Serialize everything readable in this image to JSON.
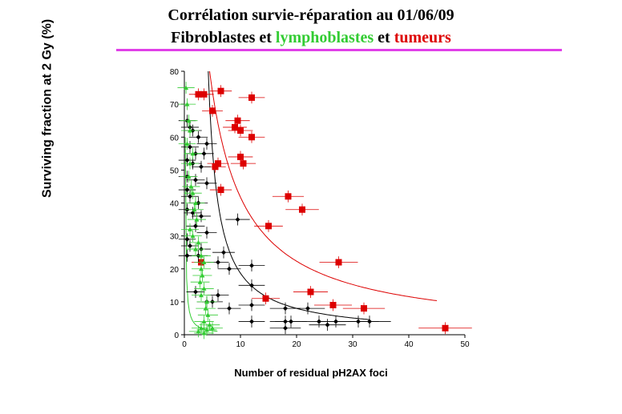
{
  "title_line1": "Corrélation survie-réparation au 01/06/09",
  "title_line2": {
    "part1": "Fibroblastes et ",
    "part2": "lymphoblastes",
    "part3": " et ",
    "part4": "tumeurs"
  },
  "colors": {
    "fibro": "#000000",
    "lympho": "#33cc33",
    "tumeur": "#dd0000",
    "rule": "#e040e8"
  },
  "chart_data": {
    "type": "scatter",
    "xlabel": "Number of residual pH2AX foci",
    "ylabel": "Surviving fraction at 2 Gy (%)",
    "xlim": [
      0,
      50
    ],
    "ylim": [
      0,
      80
    ],
    "xticks": [
      0,
      10,
      20,
      30,
      40,
      50
    ],
    "yticks": [
      0,
      10,
      20,
      30,
      40,
      50,
      60,
      70,
      80
    ],
    "series": [
      {
        "marker": "square",
        "color": "#dd0000",
        "points": [
          [
            2.5,
            73
          ],
          [
            3.5,
            73
          ],
          [
            6.5,
            74
          ],
          [
            12,
            72
          ],
          [
            5,
            68
          ],
          [
            9.5,
            65
          ],
          [
            9,
            63
          ],
          [
            10,
            62
          ],
          [
            12,
            60
          ],
          [
            6,
            52
          ],
          [
            5.5,
            51
          ],
          [
            10,
            54
          ],
          [
            10.5,
            52
          ],
          [
            6.5,
            44
          ],
          [
            18.5,
            42
          ],
          [
            21,
            38
          ],
          [
            15,
            33
          ],
          [
            27.5,
            22
          ],
          [
            3,
            22
          ],
          [
            22.5,
            13
          ],
          [
            14.5,
            11
          ],
          [
            26.5,
            9
          ],
          [
            32,
            8
          ],
          [
            46.5,
            2
          ]
        ]
      },
      {
        "marker": "diamond",
        "color": "#000000",
        "points": [
          [
            0.5,
            65
          ],
          [
            1,
            63
          ],
          [
            1.5,
            62
          ],
          [
            2.5,
            60
          ],
          [
            4,
            58
          ],
          [
            1,
            57
          ],
          [
            2,
            55
          ],
          [
            3.5,
            55
          ],
          [
            0.5,
            53
          ],
          [
            1.5,
            52
          ],
          [
            3,
            51
          ],
          [
            0.5,
            48
          ],
          [
            2,
            47
          ],
          [
            4,
            46
          ],
          [
            0.5,
            44
          ],
          [
            1,
            42
          ],
          [
            2.5,
            40
          ],
          [
            0.5,
            38
          ],
          [
            1.5,
            37
          ],
          [
            3,
            36
          ],
          [
            9.5,
            35
          ],
          [
            2,
            33
          ],
          [
            4,
            31
          ],
          [
            0.5,
            29
          ],
          [
            1,
            27
          ],
          [
            3,
            26
          ],
          [
            7,
            25
          ],
          [
            0.5,
            24
          ],
          [
            2.5,
            24
          ],
          [
            6,
            22
          ],
          [
            12,
            21
          ],
          [
            8,
            20
          ],
          [
            12,
            15
          ],
          [
            2,
            13
          ],
          [
            6,
            12
          ],
          [
            4,
            10
          ],
          [
            5,
            10
          ],
          [
            12,
            9
          ],
          [
            8,
            8
          ],
          [
            18,
            8
          ],
          [
            22,
            8
          ],
          [
            12,
            4
          ],
          [
            18,
            4
          ],
          [
            19,
            4
          ],
          [
            24,
            4
          ],
          [
            25.5,
            3
          ],
          [
            27,
            4
          ],
          [
            31,
            4
          ],
          [
            33,
            4
          ],
          [
            18,
            2
          ]
        ]
      },
      {
        "marker": "triangle",
        "color": "#33cc33",
        "points": [
          [
            0.3,
            75
          ],
          [
            0.5,
            70
          ],
          [
            0.8,
            65
          ],
          [
            1,
            62
          ],
          [
            0.5,
            58
          ],
          [
            1.5,
            55
          ],
          [
            1,
            52
          ],
          [
            0.8,
            48
          ],
          [
            1.2,
            45
          ],
          [
            1.5,
            43
          ],
          [
            2,
            40
          ],
          [
            1.8,
            38
          ],
          [
            2.2,
            35
          ],
          [
            1,
            32
          ],
          [
            1.5,
            30
          ],
          [
            2.5,
            28
          ],
          [
            2,
            26
          ],
          [
            3,
            24
          ],
          [
            3.5,
            22
          ],
          [
            3,
            20
          ],
          [
            3.2,
            18
          ],
          [
            2.8,
            16
          ],
          [
            3.5,
            14
          ],
          [
            3,
            12
          ],
          [
            4,
            10
          ],
          [
            3.8,
            8
          ],
          [
            4.2,
            6
          ],
          [
            3.5,
            4
          ],
          [
            4.5,
            3
          ],
          [
            3,
            2
          ],
          [
            4,
            1.5
          ],
          [
            5,
            2
          ],
          [
            2.5,
            1
          ],
          [
            3.5,
            0.5
          ]
        ]
      }
    ]
  }
}
